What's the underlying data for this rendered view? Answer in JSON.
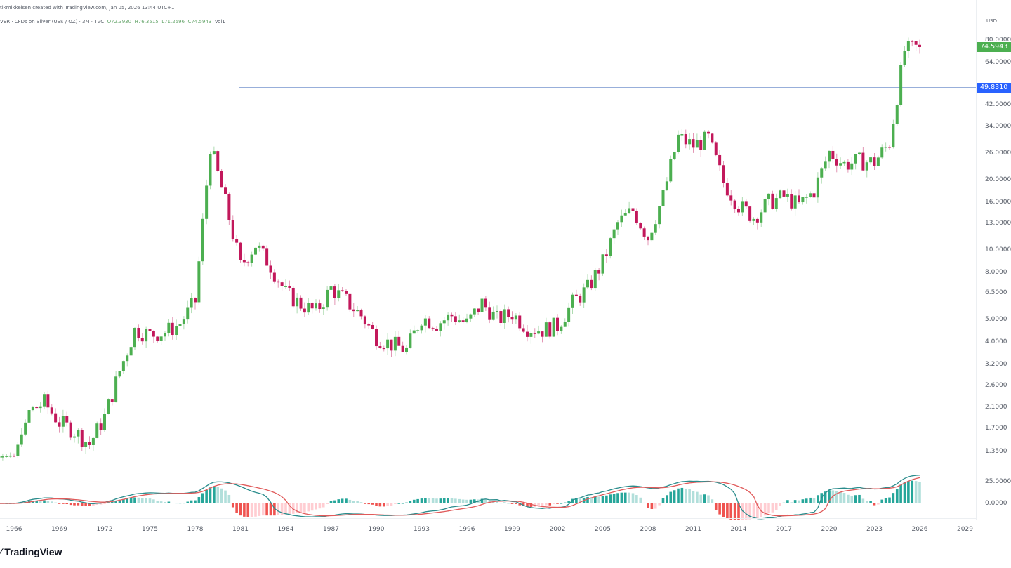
{
  "header": {
    "creator_line": "tlkmikkelsen created with TradingView.com, Jan 05, 2026 13:44 UTC+1",
    "symbol_line": "VER · CFDs on Silver (US$ / OZ) · 3M · TVC",
    "ohlc": {
      "o": "O72.3930",
      "h": "H76.3515",
      "l": "L71.2596",
      "c": "C74.5943",
      "vol": "Vol1"
    }
  },
  "price_axis": {
    "currency": "USD",
    "ticks": [
      "80.0000",
      "64.0000",
      "42.0000",
      "34.0000",
      "26.0000",
      "20.0000",
      "16.0000",
      "13.0000",
      "10.0000",
      "8.0000",
      "6.5000",
      "5.0000",
      "4.0000",
      "3.2000",
      "2.6000",
      "2.1000",
      "1.7000",
      "1.3500"
    ],
    "last_price_label": "74.5943",
    "horizontal_line_label": "49.8310",
    "macd_ticks": [
      "25.0000",
      "0.0000"
    ]
  },
  "time_axis": {
    "ticks": [
      "1966",
      "1969",
      "1972",
      "1975",
      "1978",
      "1981",
      "1984",
      "1987",
      "1990",
      "1993",
      "1996",
      "1999",
      "2002",
      "2005",
      "2008",
      "2011",
      "2014",
      "2017",
      "2020",
      "2023",
      "2026",
      "2029"
    ]
  },
  "colors": {
    "up": "#4caf50",
    "down": "#c2185b",
    "hline": "#5b7fc4",
    "last_price_bg": "#4caf50",
    "hline_label_bg": "#2962ff",
    "macd_line": "#2a8c8c",
    "signal_line": "#e05a5a",
    "hist_pos_strong": "#26a69a",
    "hist_pos_weak": "#b2dfdb",
    "hist_neg_strong": "#ef5350",
    "hist_neg_weak": "#ffcdd2"
  },
  "logo": {
    "text": "TradingView"
  },
  "chart_data": {
    "type": "candlestick",
    "title": "CFDs on Silver (US$ / OZ) · 3M · TVC",
    "xlabel": "",
    "ylabel": "USD",
    "y_scale": "log",
    "ylim": [
      1.2,
      90
    ],
    "horizontal_line": 49.831,
    "last_price": 74.5943,
    "series_yearly_close_approx": {
      "x": [
        1963,
        1966,
        1967,
        1968,
        1969,
        1970,
        1971,
        1972,
        1973,
        1974,
        1975,
        1976,
        1977,
        1978,
        1979,
        1980,
        1981,
        1982,
        1983,
        1984,
        1985,
        1986,
        1987,
        1988,
        1989,
        1990,
        1991,
        1992,
        1993,
        1994,
        1995,
        1996,
        1997,
        1998,
        1999,
        2000,
        2001,
        2002,
        2003,
        2004,
        2005,
        2006,
        2007,
        2008,
        2009,
        2010,
        2011,
        2012,
        2013,
        2014,
        2015,
        2016,
        2017,
        2018,
        2019,
        2020,
        2021,
        2022,
        2023,
        2024,
        2025,
        2026
      ],
      "close": [
        1.29,
        1.29,
        2.0,
        2.2,
        1.8,
        1.65,
        1.45,
        1.9,
        3.0,
        4.5,
        4.3,
        4.4,
        4.8,
        6.0,
        28.0,
        16.0,
        8.5,
        10.5,
        8.5,
        6.5,
        5.8,
        5.4,
        6.8,
        6.0,
        5.2,
        4.2,
        3.9,
        3.7,
        5.1,
        4.8,
        5.2,
        4.8,
        5.9,
        5.0,
        5.3,
        4.6,
        4.5,
        4.7,
        5.9,
        6.8,
        8.8,
        13.0,
        14.8,
        11.3,
        17.0,
        30.5,
        28.0,
        30.0,
        19.5,
        15.5,
        13.8,
        16.0,
        16.9,
        15.5,
        17.9,
        26.3,
        23.3,
        24.0,
        23.8,
        28.9,
        72.0,
        74.59
      ]
    },
    "macd": {
      "panel_ticks": [
        25,
        0
      ],
      "notable": "MACD peaks near 1980, 2011 and sharp rise into 2026"
    },
    "grid": false,
    "legend_position": "top-left"
  }
}
